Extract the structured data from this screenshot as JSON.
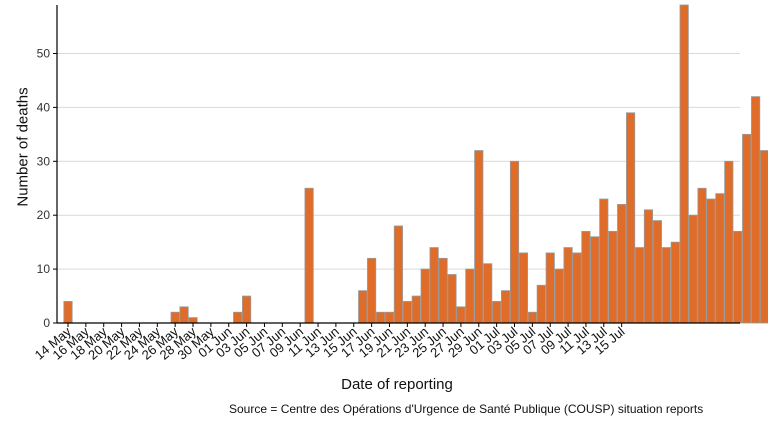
{
  "chart_data": {
    "type": "bar",
    "xlabel": "Date of reporting",
    "ylabel": "Number of deaths",
    "source": "Source = Centre des Opérations d'Urgence de Santé Publique (COUSP) situation reports",
    "ylim": [
      0,
      59
    ],
    "yticks": [
      0,
      10,
      20,
      30,
      40,
      50
    ],
    "grid": "horizontal",
    "bar_color": "#e06c2a",
    "bar_edge_color": "#999999",
    "x_tick_labels": [
      "14 May",
      "16 May",
      "18 May",
      "20 May",
      "22 May",
      "24 May",
      "26 May",
      "28 May",
      "30 May",
      "01 Jun",
      "03 Jun",
      "05 Jun",
      "07 Jun",
      "09 Jun",
      "11 Jun",
      "13 Jun",
      "15 Jun",
      "17 Jun",
      "19 Jun",
      "21 Jun",
      "23 Jun",
      "25 Jun",
      "27 Jun",
      "29 Jun",
      "01 Jul",
      "03 Jul",
      "05 Jul",
      "07 Jul",
      "09 Jul",
      "11 Jul",
      "13 Jul",
      "15 Jul"
    ],
    "values": [
      4,
      0,
      0,
      0,
      0,
      0,
      0,
      0,
      0,
      0,
      0,
      0,
      2,
      3,
      1,
      0,
      0,
      0,
      0,
      2,
      5,
      0,
      0,
      0,
      0,
      0,
      0,
      25,
      0,
      0,
      0,
      0,
      0,
      6,
      12,
      2,
      2,
      18,
      4,
      5,
      10,
      14,
      12,
      9,
      3,
      10,
      32,
      11,
      4,
      6,
      30,
      13,
      2,
      7,
      13,
      10,
      14,
      13,
      17,
      16,
      23,
      17,
      22,
      39,
      14,
      21,
      19,
      14,
      15,
      59,
      20,
      25,
      23,
      24,
      30,
      17,
      35,
      42,
      32
    ]
  }
}
